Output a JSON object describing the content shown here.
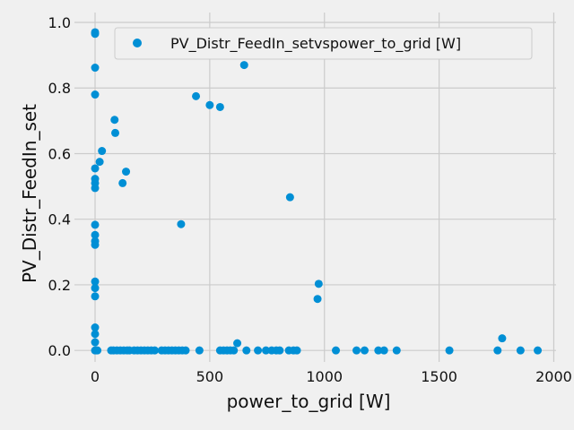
{
  "chart_data": {
    "type": "scatter",
    "xlabel": "power_to_grid [W]",
    "ylabel": "PV_Distr_FeedIn_set",
    "xlim": [
      -90,
      2010
    ],
    "ylim": [
      -0.035,
      1.03
    ],
    "xticks": [
      0,
      500,
      1000,
      1500,
      2000
    ],
    "yticks": [
      0.0,
      0.2,
      0.4,
      0.6,
      0.8,
      1.0
    ],
    "grid": true,
    "legend_position": "top-right",
    "colors": {
      "marker": "#008fd5",
      "background": "#f0f0f0",
      "grid": "#cbcbcb"
    },
    "series": [
      {
        "name": "PV_Distr_FeedIn_setvspower_to_grid [W]",
        "points": [
          [
            0,
            0.97
          ],
          [
            0,
            0.965
          ],
          [
            0,
            0.862
          ],
          [
            0,
            0.78
          ],
          [
            0,
            0.555
          ],
          [
            0,
            0.523
          ],
          [
            0,
            0.51
          ],
          [
            0,
            0.495
          ],
          [
            0,
            0.383
          ],
          [
            0,
            0.352
          ],
          [
            0,
            0.333
          ],
          [
            0,
            0.322
          ],
          [
            0,
            0.21
          ],
          [
            0,
            0.19
          ],
          [
            0,
            0.165
          ],
          [
            0,
            0.07
          ],
          [
            0,
            0.05
          ],
          [
            0,
            0.025
          ],
          [
            0,
            0.0
          ],
          [
            5,
            0.0
          ],
          [
            10,
            0.0
          ],
          [
            20,
            0.575
          ],
          [
            30,
            0.608
          ],
          [
            85,
            0.703
          ],
          [
            88,
            0.663
          ],
          [
            120,
            0.51
          ],
          [
            135,
            0.545
          ],
          [
            375,
            0.385
          ],
          [
            440,
            0.775
          ],
          [
            500,
            0.748
          ],
          [
            545,
            0.742
          ],
          [
            650,
            0.87
          ],
          [
            850,
            0.467
          ],
          [
            970,
            0.157
          ],
          [
            975,
            0.203
          ],
          [
            620,
            0.022
          ],
          [
            1775,
            0.037
          ],
          [
            70,
            0.0
          ],
          [
            80,
            0.0
          ],
          [
            95,
            0.0
          ],
          [
            110,
            0.0
          ],
          [
            125,
            0.0
          ],
          [
            140,
            0.0
          ],
          [
            150,
            0.0
          ],
          [
            170,
            0.0
          ],
          [
            185,
            0.0
          ],
          [
            200,
            0.0
          ],
          [
            215,
            0.0
          ],
          [
            230,
            0.0
          ],
          [
            245,
            0.0
          ],
          [
            260,
            0.0
          ],
          [
            290,
            0.0
          ],
          [
            305,
            0.0
          ],
          [
            320,
            0.0
          ],
          [
            335,
            0.0
          ],
          [
            350,
            0.0
          ],
          [
            365,
            0.0
          ],
          [
            380,
            0.0
          ],
          [
            395,
            0.0
          ],
          [
            455,
            0.0
          ],
          [
            545,
            0.0
          ],
          [
            560,
            0.0
          ],
          [
            575,
            0.0
          ],
          [
            590,
            0.0
          ],
          [
            605,
            0.0
          ],
          [
            660,
            0.0
          ],
          [
            710,
            0.0
          ],
          [
            745,
            0.0
          ],
          [
            770,
            0.0
          ],
          [
            790,
            0.0
          ],
          [
            805,
            0.0
          ],
          [
            845,
            0.0
          ],
          [
            865,
            0.0
          ],
          [
            880,
            0.0
          ],
          [
            1050,
            0.0
          ],
          [
            1140,
            0.0
          ],
          [
            1175,
            0.0
          ],
          [
            1235,
            0.0
          ],
          [
            1260,
            0.0
          ],
          [
            1315,
            0.0
          ],
          [
            1545,
            0.0
          ],
          [
            1755,
            0.0
          ],
          [
            1855,
            0.0
          ],
          [
            1930,
            0.0
          ]
        ]
      }
    ]
  }
}
